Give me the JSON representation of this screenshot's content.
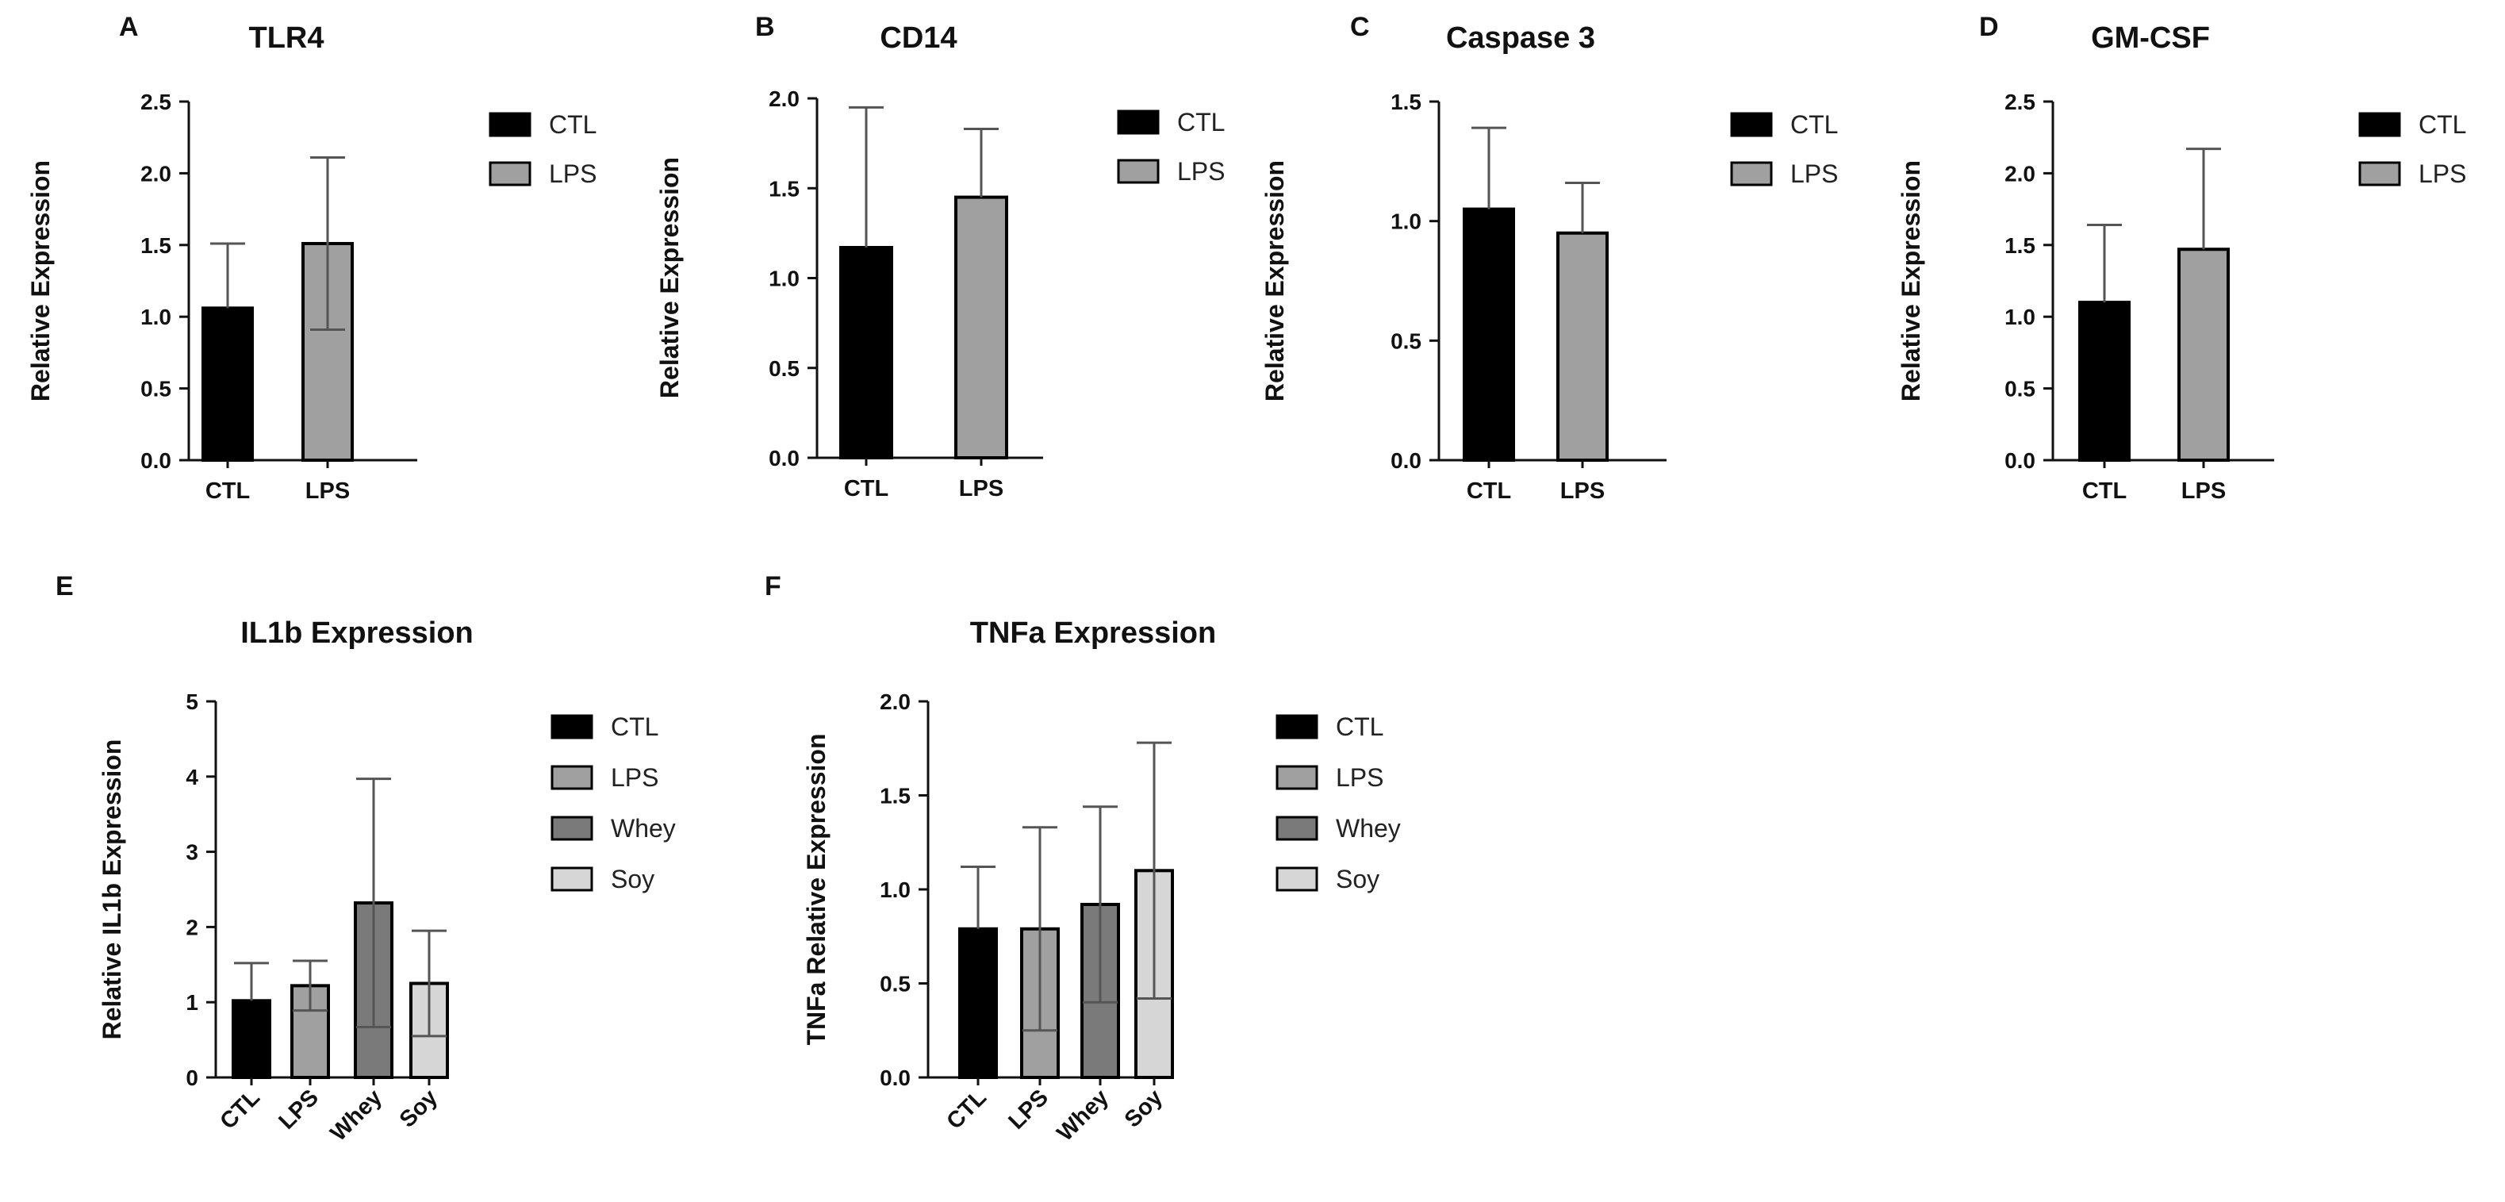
{
  "colors": {
    "CTL": "#000000",
    "LPS": "#a0a0a0",
    "Whey": "#7a7a7a",
    "Soy": "#d6d6d6",
    "axis": "#111111",
    "error": "#555555"
  },
  "chart_data": [
    {
      "panel": "A",
      "type": "bar",
      "title": "TLR4",
      "ylabel": "Relative Expression",
      "xlabel": "",
      "categories": [
        "CTL",
        "LPS"
      ],
      "values": [
        1.06,
        1.51
      ],
      "errors": [
        0.45,
        0.6
      ],
      "error_lower": [
        false,
        true
      ],
      "ylim": [
        0,
        2.5
      ],
      "yticks": [
        "0.0",
        "0.5",
        "1.0",
        "1.5",
        "2.0",
        "2.5"
      ],
      "legend": [
        "CTL",
        "LPS"
      ],
      "legend_position": "right"
    },
    {
      "panel": "B",
      "type": "bar",
      "title": "CD14",
      "ylabel": "Relative Expression",
      "xlabel": "",
      "categories": [
        "CTL",
        "LPS"
      ],
      "values": [
        1.17,
        1.45
      ],
      "errors": [
        0.78,
        0.38
      ],
      "error_lower": [
        false,
        false
      ],
      "ylim": [
        0,
        2.0
      ],
      "yticks": [
        "0.0",
        "0.5",
        "1.0",
        "1.5",
        "2.0"
      ],
      "legend": [
        "CTL",
        "LPS"
      ],
      "legend_position": "right"
    },
    {
      "panel": "C",
      "type": "bar",
      "title": "Caspase 3",
      "ylabel": "Relative Expression",
      "xlabel": "",
      "categories": [
        "CTL",
        "LPS"
      ],
      "values": [
        1.05,
        0.95
      ],
      "errors": [
        0.34,
        0.21
      ],
      "error_lower": [
        false,
        false
      ],
      "ylim": [
        0,
        1.5
      ],
      "yticks": [
        "0.0",
        "0.5",
        "1.0",
        "1.5"
      ],
      "legend": [
        "CTL",
        "LPS"
      ],
      "legend_position": "right"
    },
    {
      "panel": "D",
      "type": "bar",
      "title": "GM-CSF",
      "ylabel": "Relative Expression",
      "xlabel": "",
      "categories": [
        "CTL",
        "LPS"
      ],
      "values": [
        1.1,
        1.47
      ],
      "errors": [
        0.54,
        0.7
      ],
      "error_lower": [
        false,
        false
      ],
      "ylim": [
        0,
        2.5
      ],
      "yticks": [
        "0.0",
        "0.5",
        "1.0",
        "1.5",
        "2.0",
        "2.5"
      ],
      "legend": [
        "CTL",
        "LPS"
      ],
      "legend_position": "right"
    },
    {
      "panel": "E",
      "type": "bar",
      "title": "IL1b Expression",
      "ylabel": "Relative IL1b Expression",
      "xlabel": "",
      "categories": [
        "CTL",
        "LPS",
        "Whey",
        "Soy"
      ],
      "values": [
        1.02,
        1.22,
        2.32,
        1.25
      ],
      "errors": [
        0.5,
        0.33,
        1.65,
        0.7
      ],
      "error_lower": [
        false,
        true,
        true,
        true
      ],
      "ylim": [
        0,
        5
      ],
      "yticks": [
        "0",
        "1",
        "2",
        "3",
        "4",
        "5"
      ],
      "legend": [
        "CTL",
        "LPS",
        "Whey",
        "Soy"
      ],
      "legend_position": "right"
    },
    {
      "panel": "F",
      "type": "bar",
      "title": "TNFa Expression",
      "ylabel": "TNFa Relative Expression",
      "xlabel": "",
      "categories": [
        "CTL",
        "LPS",
        "Whey",
        "Soy"
      ],
      "values": [
        0.79,
        0.79,
        0.92,
        1.1
      ],
      "errors": [
        0.33,
        0.54,
        0.52,
        0.68
      ],
      "error_lower": [
        false,
        true,
        true,
        true
      ],
      "ylim": [
        0,
        2.0
      ],
      "yticks": [
        "0.0",
        "0.5",
        "1.0",
        "1.5",
        "2.0"
      ],
      "legend": [
        "CTL",
        "LPS",
        "Whey",
        "Soy"
      ],
      "legend_position": "right"
    }
  ]
}
